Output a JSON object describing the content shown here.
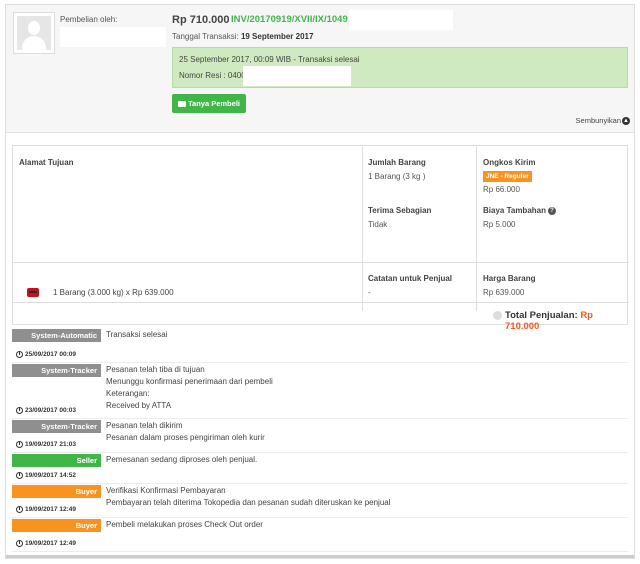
{
  "header": {
    "buyer_label": "Pembelian oleh:",
    "total_price": "Rp 710.000",
    "invoice": "INV/20170919/XVII/IX/1049",
    "tx_date_label": "Tanggal Transaksi:",
    "tx_date_value": "19 September 2017",
    "status_line1": "25 September 2017, 00:09 WIB - Transaksi selesai",
    "status_line2": "Nomor Resi : 0400",
    "ask_buyer_button": "Tanya Pembeli",
    "hide_label": "Sembunyikan"
  },
  "detail": {
    "address_label": "Alamat Tujuan",
    "qty_label": "Jumlah Barang",
    "qty_value": "1 Barang (3 kg )",
    "shipping_label": "Ongkos Kirim",
    "courier_badge": "JNE - Reguler",
    "shipping_value": "Rp 66.000",
    "partial_label": "Terima Sebagian",
    "partial_value": "Tidak",
    "extra_fee_label": "Biaya Tambahan",
    "extra_fee_value": "Rp 5.000",
    "product_line": "1 Barang (3.000 kg) x Rp 639.000",
    "seller_note_label": "Catatan untuk Penjual",
    "seller_note_value": "-",
    "item_price_label": "Harga Barang",
    "item_price_value": "Rp 639.000",
    "total_sales_label": "Total Penjualan:",
    "total_sales_value": "Rp 710.000"
  },
  "history": [
    {
      "actor": "System-Automatic",
      "color": "gray",
      "lines": [
        "Transaksi selesai"
      ],
      "time": "25/09/2017 00:09"
    },
    {
      "actor": "System-Tracker",
      "color": "gray",
      "lines": [
        "Pesanan telah tiba di tujuan",
        "Menunggu konfirmasi penerimaan dari pembeli",
        "Keterangan:",
        "Received by ATTA"
      ],
      "time": "23/09/2017 00:03"
    },
    {
      "actor": "System-Tracker",
      "color": "gray",
      "lines": [
        "Pesanan telah dikirim",
        "Pesanan dalam proses pengiriman oleh kurir"
      ],
      "time": "19/09/2017 21:03"
    },
    {
      "actor": "Seller",
      "color": "green",
      "lines": [
        "Pemesanan sedang diproses oleh penjual."
      ],
      "time": "19/09/2017 14:52"
    },
    {
      "actor": "Buyer",
      "color": "orange",
      "lines": [
        "Verifikasi Konfirmasi Pembayaran",
        "Pembayaran telah diterima Tokopedia dan pesanan sudah diteruskan ke penjual"
      ],
      "time": "19/09/2017 12:49"
    },
    {
      "actor": "Buyer",
      "color": "orange",
      "lines": [
        "Pembeli melakukan proses Check Out order"
      ],
      "time": "19/09/2017 12:49"
    }
  ],
  "colors": {
    "green": "#42b549",
    "orange": "#f7931e",
    "gray": "#8f8f8f",
    "price_red": "#f7571e"
  }
}
